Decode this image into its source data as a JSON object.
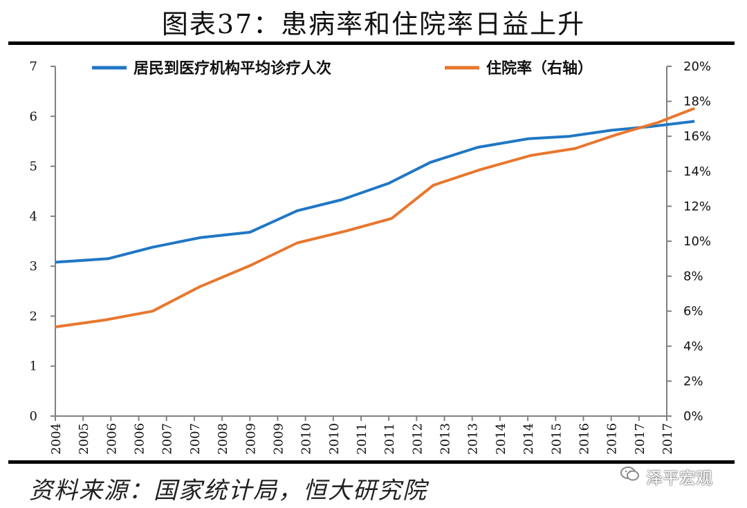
{
  "title": "图表37：患病率和住院率日益上升",
  "source": "资料来源：国家统计局，恒大研究院",
  "watermark": "泽平宏观",
  "colors": {
    "series_blue": "#1f77c4",
    "series_orange": "#e8772e",
    "axis": "#808080"
  },
  "icons": {
    "watermark": "wechat-icon"
  },
  "chart_data": {
    "type": "line",
    "x": [
      "2004",
      "2005",
      "2006",
      "2006",
      "2007",
      "2007",
      "2008",
      "2009",
      "2009",
      "2010",
      "2010",
      "2011",
      "2011",
      "2012",
      "2013",
      "2013",
      "2014",
      "2014",
      "2015",
      "2016",
      "2016",
      "2017",
      "2017"
    ],
    "y_left": {
      "ylim": [
        0,
        7
      ],
      "ticks": [
        "0",
        "1",
        "2",
        "3",
        "4",
        "5",
        "6",
        "7"
      ]
    },
    "y_right": {
      "ylim": [
        0,
        20
      ],
      "ticks": [
        "0%",
        "2%",
        "4%",
        "6%",
        "8%",
        "10%",
        "12%",
        "14%",
        "16%",
        "18%",
        "20%"
      ]
    },
    "legend_position": "top",
    "grid": false,
    "series": [
      {
        "name": "居民到医疗机构平均诊疗人次",
        "axis": "left",
        "color": "#1f77c4",
        "points": [
          [
            0,
            3.08
          ],
          [
            1.9,
            3.15
          ],
          [
            3.5,
            3.38
          ],
          [
            5.2,
            3.57
          ],
          [
            7,
            3.68
          ],
          [
            8.7,
            4.11
          ],
          [
            10.3,
            4.33
          ],
          [
            12,
            4.66
          ],
          [
            13.5,
            5.08
          ],
          [
            15.2,
            5.38
          ],
          [
            17,
            5.55
          ],
          [
            18.5,
            5.6
          ],
          [
            20,
            5.72
          ],
          [
            21.5,
            5.8
          ],
          [
            23,
            5.9
          ]
        ]
      },
      {
        "name": "住院率（右轴）",
        "axis": "right",
        "color": "#e8772e",
        "points": [
          [
            0,
            5.1
          ],
          [
            1.8,
            5.5
          ],
          [
            3.5,
            6.0
          ],
          [
            5.2,
            7.4
          ],
          [
            7,
            8.6
          ],
          [
            8.7,
            9.9
          ],
          [
            10.5,
            10.6
          ],
          [
            12.1,
            11.3
          ],
          [
            13.6,
            13.2
          ],
          [
            15.3,
            14.1
          ],
          [
            17.1,
            14.9
          ],
          [
            18.7,
            15.3
          ],
          [
            20.2,
            16.1
          ],
          [
            21.7,
            16.8
          ],
          [
            23,
            17.6
          ]
        ]
      }
    ]
  }
}
